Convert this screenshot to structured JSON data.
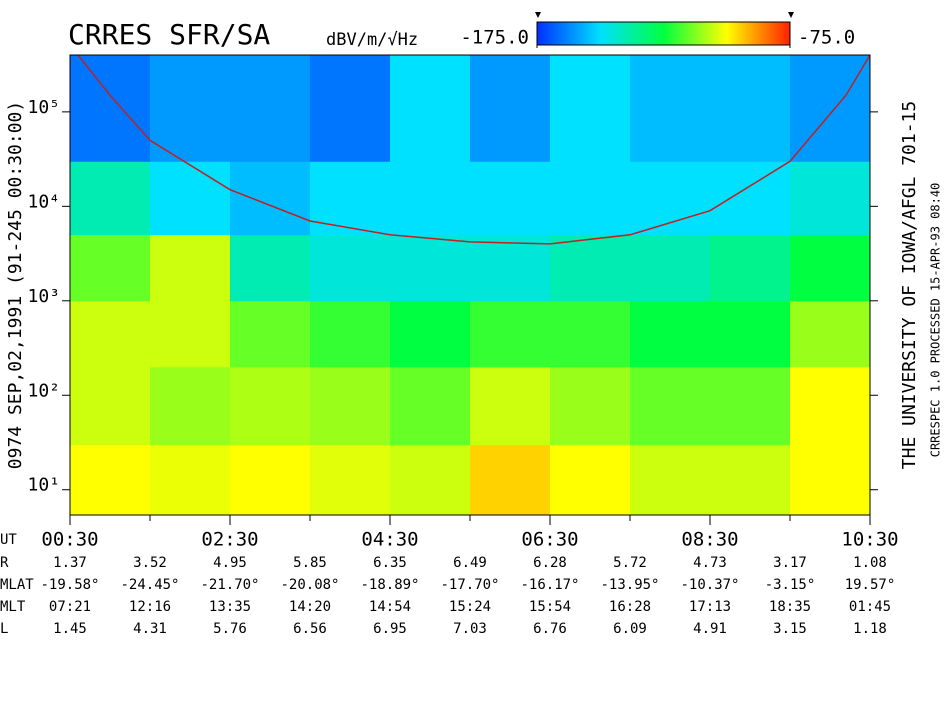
{
  "chart_data": {
    "type": "spectrogram",
    "title": "CRRES SFR/SA",
    "colorbar_label": "dBV/m/√Hz",
    "colorbar_lim": [
      -175,
      -75
    ],
    "colorbar_ticks": [
      {
        "value": -175,
        "label": "-175.0"
      },
      {
        "value": -75,
        "label": "-75.0"
      }
    ],
    "colormap": [
      "#0030ff",
      "#00e0ff",
      "#00ff40",
      "#ffff00",
      "#ff2000"
    ],
    "left_label": "0974   SEP,02,1991   (91-245 00:30:00)",
    "right_label": "THE UNIVERSITY OF IOWA/AFGL 701-15",
    "right_note": "CRRESPEC 1.0   PROCESSED 15-APR-93  08:40",
    "xlabel": "UT",
    "xlim": [
      0.5,
      10.5
    ],
    "xticks": [
      {
        "value": 0.5,
        "label": "00:30"
      },
      {
        "value": 2.5,
        "label": "02:30"
      },
      {
        "value": 4.5,
        "label": "04:30"
      },
      {
        "value": 6.5,
        "label": "06:30"
      },
      {
        "value": 8.5,
        "label": "08:30"
      },
      {
        "value": 10.5,
        "label": "10:30"
      }
    ],
    "xminorticks": [
      1.5,
      3.5,
      5.5,
      7.5,
      9.5
    ],
    "ylim": [
      5.4,
      400000
    ],
    "log_y": true,
    "yticks": [
      {
        "value": 10,
        "label": "10¹"
      },
      {
        "value": 100,
        "label": "10²"
      },
      {
        "value": 1000,
        "label": "10³"
      },
      {
        "value": 10000,
        "label": "10⁴"
      },
      {
        "value": 100000,
        "label": "10⁵"
      }
    ],
    "time_bins": [
      0.5,
      1.5,
      2.5,
      3.5,
      4.5,
      5.5,
      6.5,
      7.5,
      8.5,
      9.5,
      10.5
    ],
    "freq_bins": [
      5.4,
      30,
      200,
      1000,
      5000,
      30000,
      400000
    ],
    "z": [
      [
        -100,
        -102,
        -100,
        -103,
        -105,
        -95,
        -100,
        -105,
        -105,
        -100
      ],
      [
        -105,
        -110,
        -108,
        -110,
        -115,
        -105,
        -110,
        -115,
        -115,
        -100
      ],
      [
        -105,
        -105,
        -115,
        -120,
        -125,
        -120,
        -120,
        -125,
        -125,
        -110
      ],
      [
        -115,
        -105,
        -140,
        -145,
        -145,
        -145,
        -140,
        -140,
        -135,
        -125
      ],
      [
        -140,
        -150,
        -155,
        -150,
        -150,
        -150,
        -150,
        -150,
        -150,
        -145
      ],
      [
        -165,
        -160,
        -160,
        -165,
        -150,
        -160,
        -150,
        -155,
        -155,
        -160
      ]
    ],
    "series": [
      {
        "color": "#c02020",
        "x": [
          0.6,
          1.0,
          1.5,
          2.5,
          3.5,
          4.5,
          5.5,
          6.5,
          7.5,
          8.5,
          9.5,
          10.2,
          10.5
        ],
        "values": [
          400000,
          150000,
          50000,
          15000,
          7000,
          5000,
          4200,
          4000,
          5000,
          9000,
          30000,
          150000,
          400000
        ]
      }
    ],
    "ephemeris": [
      {
        "label": "R",
        "values": [
          "1.37",
          "3.52",
          "4.95",
          "5.85",
          "6.35",
          "6.49",
          "6.28",
          "5.72",
          "4.73",
          "3.17",
          "1.08"
        ]
      },
      {
        "label": "MLAT",
        "values": [
          "-19.58°",
          "-24.45°",
          "-21.70°",
          "-20.08°",
          "-18.89°",
          "-17.70°",
          "-16.17°",
          "-13.95°",
          "-10.37°",
          "-3.15°",
          "19.57°"
        ]
      },
      {
        "label": "MLT",
        "values": [
          "07:21",
          "12:16",
          "13:35",
          "14:20",
          "14:54",
          "15:24",
          "15:54",
          "16:28",
          "17:13",
          "18:35",
          "01:45"
        ]
      },
      {
        "label": "L",
        "values": [
          "1.45",
          "4.31",
          "5.76",
          "6.56",
          "6.95",
          "7.03",
          "6.76",
          "6.09",
          "4.91",
          "3.15",
          "1.18"
        ]
      }
    ]
  }
}
